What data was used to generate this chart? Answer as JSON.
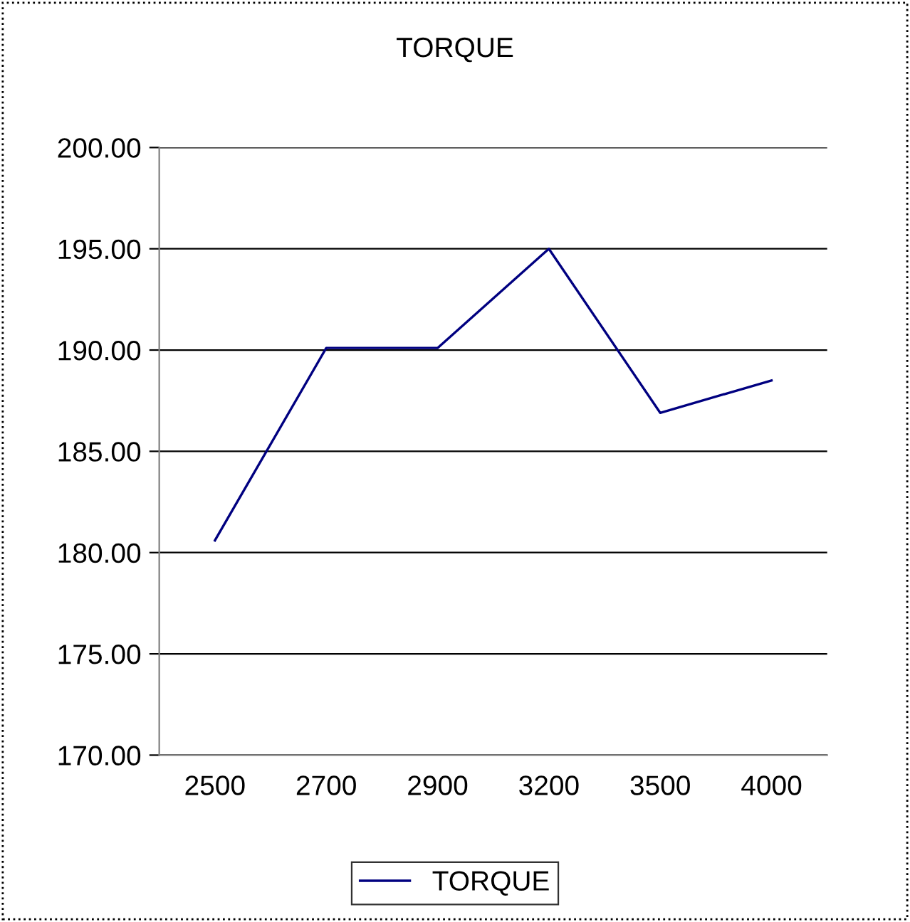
{
  "chart_data": {
    "type": "line",
    "title": "TORQUE",
    "categories": [
      "2500",
      "2700",
      "2900",
      "3200",
      "3500",
      "4000"
    ],
    "series": [
      {
        "name": "TORQUE",
        "color": "#000080",
        "values": [
          180.6,
          190.1,
          190.1,
          195.0,
          186.9,
          188.5
        ]
      }
    ],
    "ylim": [
      170,
      200
    ],
    "yticks": [
      {
        "value": 170,
        "label": "170.00"
      },
      {
        "value": 175,
        "label": "175.00"
      },
      {
        "value": 180,
        "label": "180.00"
      },
      {
        "value": 185,
        "label": "185.00"
      },
      {
        "value": 190,
        "label": "190.00"
      },
      {
        "value": 195,
        "label": "195.00"
      },
      {
        "value": 200,
        "label": "200.00"
      }
    ],
    "grid": "y",
    "legend": "bottom",
    "marker": "none",
    "line_style": "solid"
  }
}
